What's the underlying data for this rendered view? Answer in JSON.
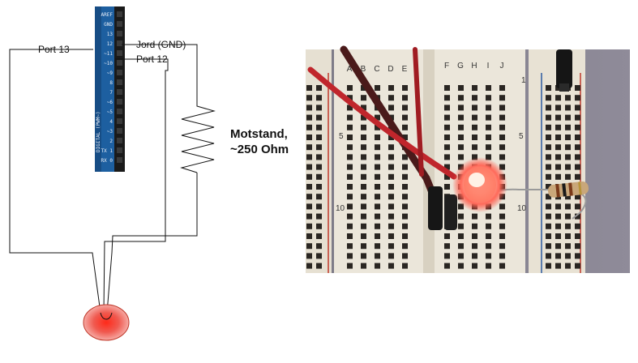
{
  "labels": {
    "port13": "Port 13",
    "ground": "Jord (GND)",
    "port12": "Port 12",
    "resistor_line1": "Motstand,",
    "resistor_line2": "~250 Ohm"
  },
  "arduino": {
    "pin_labels": [
      "AREF",
      "GND",
      "13",
      "12",
      "~11",
      "~10",
      "~9",
      "8",
      "7",
      "~6",
      "~5",
      "4",
      "~3",
      "2",
      "TX 1",
      "RX 0"
    ],
    "board_text": "DIGITAL (PWM~)",
    "colors": {
      "board": "#1d5fa0",
      "header": "#1a1a1a"
    }
  },
  "breadboard": {
    "column_letters_left": [
      "A",
      "B",
      "C",
      "D",
      "E"
    ],
    "column_letters_right": [
      "F",
      "G",
      "H",
      "I",
      "J"
    ],
    "row_numbers": [
      "1",
      "5",
      "10"
    ],
    "colors": {
      "board": "#ebe6da",
      "hole": "#2a2622",
      "rail_red": "#c0392b",
      "rail_blue": "#2c5aa0"
    }
  },
  "colors": {
    "wire": "#111111",
    "led": "#e74c3c",
    "photo_wire_red": "#c0262c",
    "photo_wire_dark": "#4a1a1a"
  }
}
